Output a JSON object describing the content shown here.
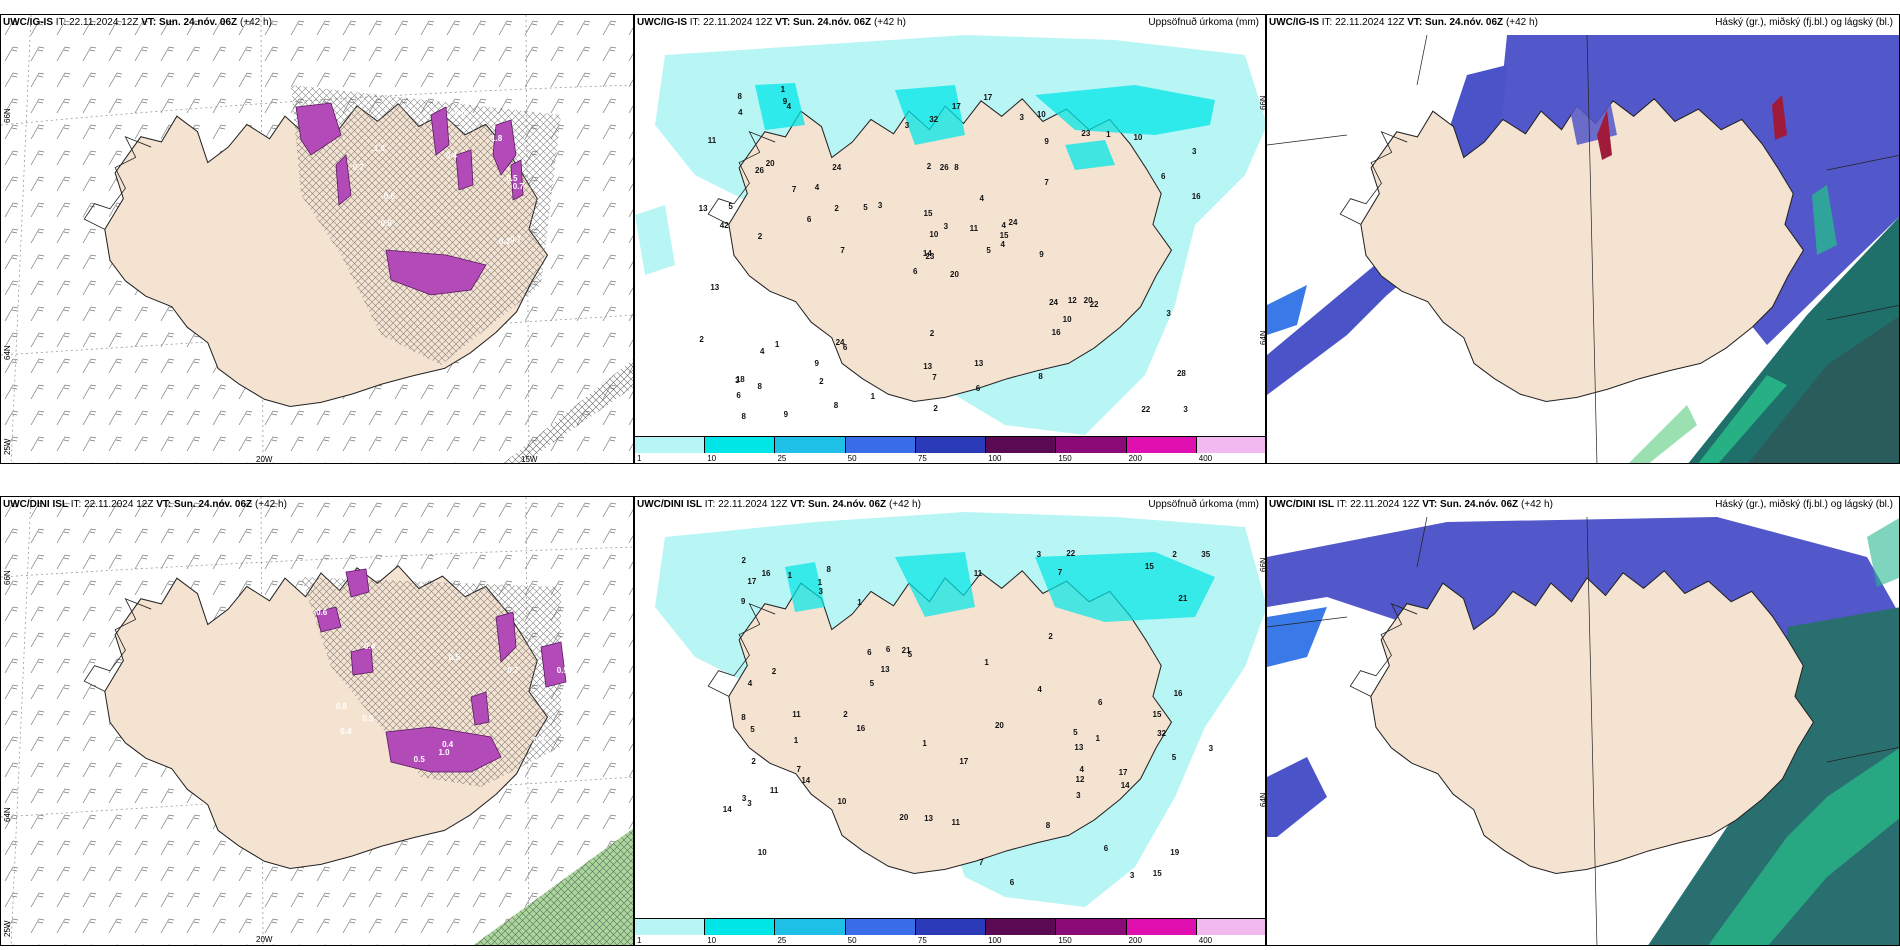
{
  "panels": {
    "top_left": {
      "title_model": "UWC/IG-IS",
      "title_rest": " IT: 22.11.2024 12Z ",
      "title_vt": "VT: Sun. 24.nóv. 06Z",
      "title_tail": " (+42 h)"
    },
    "top_mid": {
      "title_model": "UWC/IG-IS",
      "title_rest": " IT: 22.11.2024 12Z ",
      "title_vt": "VT: Sun. 24.nóv. 06Z",
      "title_tail": " (+42 h)",
      "variable": "Uppsöfnuð úrkoma (mm)"
    },
    "top_right": {
      "title_model": "UWC/IG-IS",
      "title_rest": " IT: 22.11.2024 12Z ",
      "title_vt": "VT: Sun. 24.nóv. 06Z",
      "title_tail": " (+42 h)",
      "variable": "Háský (gr.), miðský (fj.bl.) og lágský (bl.)"
    },
    "bot_left": {
      "title_model": "UWC/DINI ISL",
      "title_rest": " IT: 22.11.2024 12Z ",
      "title_vt": "VT: Sun. 24.nóv. 06Z",
      "title_tail": " (+42 h)"
    },
    "bot_mid": {
      "title_model": "UWC/DINI ISL",
      "title_rest": " IT: 22.11.2024 12Z ",
      "title_vt": "VT: Sun. 24.nóv. 06Z",
      "title_tail": " (+42 h)",
      "variable": "Uppsöfnuð úrkoma (mm)"
    },
    "bot_right": {
      "title_model": "UWC/DINI ISL",
      "title_rest": " IT: 22.11.2024 12Z ",
      "title_vt": "VT: Sun. 24.nóv. 06Z",
      "title_tail": " (+42 h)",
      "variable": "Háský (gr.), miðský (fj.bl.) og lágský (bl.)"
    }
  },
  "grid_labels": {
    "lat66": "66N",
    "lat64": "64N",
    "lon20": "20W",
    "lon15": "15W",
    "lon25": "25W"
  },
  "colorbar": {
    "ticks": [
      "1",
      "10",
      "25",
      "50",
      "75",
      "100",
      "150",
      "200",
      "400"
    ],
    "colors": [
      "#b8f5f5",
      "#00e5e5",
      "#1fc0e8",
      "#3a6ee8",
      "#2a3ab8",
      "#5a0a52",
      "#8a0a78",
      "#e010b0",
      "#f2b8f0"
    ]
  },
  "precip_top": [
    "20",
    "26",
    "23",
    "18",
    "4",
    "6",
    "10",
    "8",
    "9",
    "5",
    "4",
    "3",
    "2",
    "3",
    "6",
    "7",
    "9",
    "2",
    "4",
    "1",
    "3",
    "6",
    "2",
    "26",
    "24",
    "22",
    "20",
    "32",
    "42",
    "24",
    "16",
    "14",
    "13",
    "10",
    "24",
    "23",
    "24",
    "22",
    "28",
    "20",
    "17",
    "5",
    "6",
    "16",
    "8",
    "13",
    "15",
    "8",
    "7",
    "4",
    "4",
    "6",
    "11",
    "10",
    "8",
    "9",
    "9",
    "8",
    "13",
    "10",
    "17",
    "7",
    "5",
    "4",
    "1",
    "1",
    "3",
    "3",
    "3",
    "2",
    "2",
    "1",
    "12",
    "2",
    "3",
    "4",
    "7",
    "13",
    "15",
    "6",
    "11",
    "8",
    "9",
    "3",
    "2"
  ],
  "precip_bot": [
    "13",
    "32",
    "10",
    "8",
    "5",
    "6",
    "3",
    "7",
    "6",
    "6",
    "9",
    "8",
    "17",
    "19",
    "20",
    "16",
    "17",
    "20",
    "21",
    "14",
    "35",
    "15",
    "5",
    "5",
    "3",
    "1",
    "4",
    "5",
    "3",
    "6",
    "7",
    "8",
    "13",
    "16",
    "15",
    "14",
    "12",
    "11",
    "11",
    "11",
    "21",
    "22",
    "15",
    "13",
    "17",
    "10",
    "14",
    "16",
    "4",
    "4",
    "3",
    "6",
    "2",
    "5",
    "3",
    "3",
    "2",
    "2",
    "1",
    "1",
    "1",
    "1",
    "1",
    "2",
    "11",
    "2",
    "1",
    "7",
    "2",
    "3"
  ],
  "wind_labels_top": [
    "1.0",
    "0.5",
    "0.4",
    "0.7",
    "0.6",
    "0.7",
    "0.5",
    "0.6",
    "0.3",
    "1.8",
    "0.7"
  ],
  "wind_labels_bot": [
    "0.5",
    "0.4",
    "0.5",
    "0.6",
    "0.5",
    "0.4",
    "1.0",
    "0.8",
    "0.7",
    "0.4",
    "0.5",
    "0.7"
  ]
}
